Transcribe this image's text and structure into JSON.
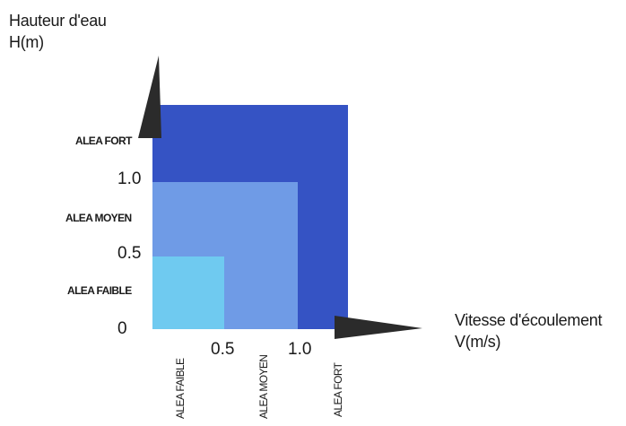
{
  "y_axis": {
    "title_line1": "Hauteur d'eau",
    "title_line2": "H(m)"
  },
  "x_axis": {
    "title_line1": "Vitesse d'écoulement",
    "title_line2": "V(m/s)"
  },
  "y_ticks": [
    "0",
    "0.5",
    "1.0"
  ],
  "x_ticks": [
    "0.5",
    "1.0"
  ],
  "y_zone_labels": {
    "strong": "ALEA FORT",
    "medium": "ALEA MOYEN",
    "weak": "ALEA FAIBLE"
  },
  "x_zone_labels": {
    "weak": "ALEA FAIBLE",
    "medium": "ALEA MOYEN",
    "strong": "ALEA FORT"
  },
  "zones": [
    {
      "name": "ALEA FORT",
      "color": "#3553c4"
    },
    {
      "name": "ALEA MOYEN",
      "color": "#6f9be6"
    },
    {
      "name": "ALEA FAIBLE",
      "color": "#6fcaf0"
    }
  ],
  "arrow_color": "#2b2b2b"
}
